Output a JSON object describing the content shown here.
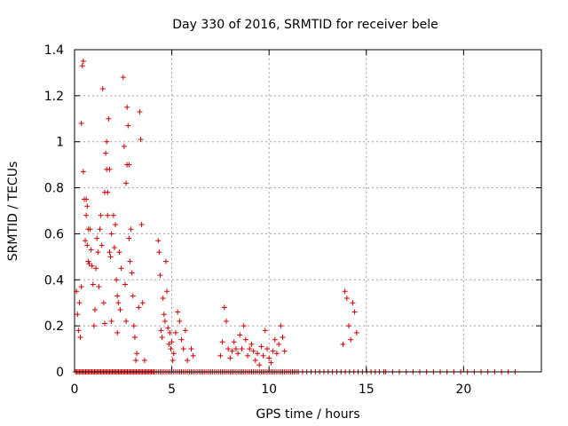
{
  "chart_data": {
    "type": "scatter",
    "title": "Day 330 of 2016, SRMTID for receiver bele",
    "xlabel": "GPS time / hours",
    "ylabel": "SRMTID / TECUs",
    "xlim": [
      0,
      24
    ],
    "ylim": [
      0,
      1.4
    ],
    "x_ticks": [
      0,
      5,
      10,
      15,
      20
    ],
    "x_tick_labels": [
      "0",
      "5",
      "10",
      "15",
      "20"
    ],
    "y_ticks": [
      0,
      0.2,
      0.4,
      0.6,
      0.8,
      1.0,
      1.2,
      1.4
    ],
    "y_tick_labels": [
      "0",
      "0.2",
      "0.4",
      "0.6",
      "0.8",
      "1",
      "1.2",
      "1.4"
    ],
    "grid": true,
    "marker": "+",
    "color": "#d00000",
    "series": [
      {
        "name": "SRMTID",
        "points": [
          [
            0.1,
            0.35
          ],
          [
            0.15,
            0.25
          ],
          [
            0.2,
            0.18
          ],
          [
            0.25,
            0.3
          ],
          [
            0.3,
            0.15
          ],
          [
            0.35,
            0.37
          ],
          [
            0.35,
            1.08
          ],
          [
            0.4,
            1.33
          ],
          [
            0.45,
            1.35
          ],
          [
            0.45,
            0.87
          ],
          [
            0.5,
            0.75
          ],
          [
            0.55,
            0.57
          ],
          [
            0.6,
            0.75
          ],
          [
            0.6,
            0.68
          ],
          [
            0.65,
            0.72
          ],
          [
            0.65,
            0.55
          ],
          [
            0.7,
            0.62
          ],
          [
            0.7,
            0.48
          ],
          [
            0.75,
            0.47
          ],
          [
            0.8,
            0.62
          ],
          [
            0.85,
            0.53
          ],
          [
            0.9,
            0.46
          ],
          [
            0.95,
            0.38
          ],
          [
            1.0,
            0.2
          ],
          [
            1.05,
            0.27
          ],
          [
            1.1,
            0.45
          ],
          [
            1.15,
            0.58
          ],
          [
            1.2,
            0.52
          ],
          [
            1.25,
            0.37
          ],
          [
            1.3,
            0.62
          ],
          [
            1.35,
            0.68
          ],
          [
            1.4,
            0.55
          ],
          [
            1.45,
            1.23
          ],
          [
            1.5,
            0.3
          ],
          [
            1.55,
            0.21
          ],
          [
            1.55,
            0.78
          ],
          [
            1.6,
            0.95
          ],
          [
            1.65,
            1.0
          ],
          [
            1.65,
            0.88
          ],
          [
            1.7,
            0.78
          ],
          [
            1.7,
            0.68
          ],
          [
            1.75,
            1.1
          ],
          [
            1.8,
            0.88
          ],
          [
            1.8,
            0.52
          ],
          [
            1.85,
            0.5
          ],
          [
            1.9,
            0.6
          ],
          [
            1.9,
            0.22
          ],
          [
            2.0,
            0.68
          ],
          [
            2.05,
            0.54
          ],
          [
            2.1,
            0.64
          ],
          [
            2.15,
            0.4
          ],
          [
            2.2,
            0.33
          ],
          [
            2.2,
            0.17
          ],
          [
            2.25,
            0.3
          ],
          [
            2.3,
            0.52
          ],
          [
            2.35,
            0.27
          ],
          [
            2.4,
            0.45
          ],
          [
            2.5,
            1.28
          ],
          [
            2.55,
            0.98
          ],
          [
            2.6,
            0.38
          ],
          [
            2.65,
            0.22
          ],
          [
            2.65,
            0.82
          ],
          [
            2.7,
            0.9
          ],
          [
            2.7,
            1.15
          ],
          [
            2.75,
            1.07
          ],
          [
            2.8,
            0.9
          ],
          [
            2.8,
            0.58
          ],
          [
            2.85,
            0.48
          ],
          [
            2.9,
            0.62
          ],
          [
            2.95,
            0.43
          ],
          [
            3.0,
            0.33
          ],
          [
            3.05,
            0.2
          ],
          [
            3.1,
            0.15
          ],
          [
            3.15,
            0.05
          ],
          [
            3.2,
            0.08
          ],
          [
            3.3,
            0.28
          ],
          [
            3.35,
            1.13
          ],
          [
            3.4,
            1.01
          ],
          [
            3.45,
            0.64
          ],
          [
            3.5,
            0.3
          ],
          [
            3.6,
            0.05
          ],
          [
            4.3,
            0.57
          ],
          [
            4.35,
            0.52
          ],
          [
            4.4,
            0.42
          ],
          [
            4.45,
            0.18
          ],
          [
            4.5,
            0.15
          ],
          [
            4.55,
            0.32
          ],
          [
            4.6,
            0.25
          ],
          [
            4.65,
            0.22
          ],
          [
            4.7,
            0.48
          ],
          [
            4.75,
            0.35
          ],
          [
            4.8,
            0.19
          ],
          [
            4.85,
            0.12
          ],
          [
            4.9,
            0.17
          ],
          [
            4.95,
            0.1
          ],
          [
            5.0,
            0.13
          ],
          [
            5.05,
            0.05
          ],
          [
            5.1,
            0.08
          ],
          [
            5.2,
            0.17
          ],
          [
            5.3,
            0.26
          ],
          [
            5.4,
            0.22
          ],
          [
            5.5,
            0.14
          ],
          [
            5.6,
            0.1
          ],
          [
            5.7,
            0.18
          ],
          [
            5.8,
            0.05
          ],
          [
            6.0,
            0.1
          ],
          [
            6.1,
            0.07
          ],
          [
            7.5,
            0.07
          ],
          [
            7.6,
            0.13
          ],
          [
            7.7,
            0.28
          ],
          [
            7.8,
            0.22
          ],
          [
            7.9,
            0.1
          ],
          [
            8.0,
            0.06
          ],
          [
            8.1,
            0.09
          ],
          [
            8.2,
            0.13
          ],
          [
            8.3,
            0.1
          ],
          [
            8.4,
            0.08
          ],
          [
            8.5,
            0.16
          ],
          [
            8.6,
            0.1
          ],
          [
            8.7,
            0.2
          ],
          [
            8.8,
            0.14
          ],
          [
            8.9,
            0.07
          ],
          [
            9.0,
            0.1
          ],
          [
            9.1,
            0.12
          ],
          [
            9.2,
            0.09
          ],
          [
            9.3,
            0.05
          ],
          [
            9.4,
            0.08
          ],
          [
            9.5,
            0.03
          ],
          [
            9.6,
            0.11
          ],
          [
            9.7,
            0.07
          ],
          [
            9.8,
            0.18
          ],
          [
            9.9,
            0.1
          ],
          [
            10.0,
            0.06
          ],
          [
            10.1,
            0.04
          ],
          [
            10.2,
            0.09
          ],
          [
            10.3,
            0.14
          ],
          [
            10.4,
            0.08
          ],
          [
            10.5,
            0.12
          ],
          [
            10.6,
            0.2
          ],
          [
            10.7,
            0.15
          ],
          [
            10.8,
            0.09
          ],
          [
            13.8,
            0.12
          ],
          [
            13.9,
            0.35
          ],
          [
            14.0,
            0.32
          ],
          [
            14.1,
            0.2
          ],
          [
            14.2,
            0.14
          ],
          [
            14.3,
            0.3
          ],
          [
            14.4,
            0.26
          ],
          [
            14.5,
            0.17
          ]
        ]
      }
    ]
  }
}
